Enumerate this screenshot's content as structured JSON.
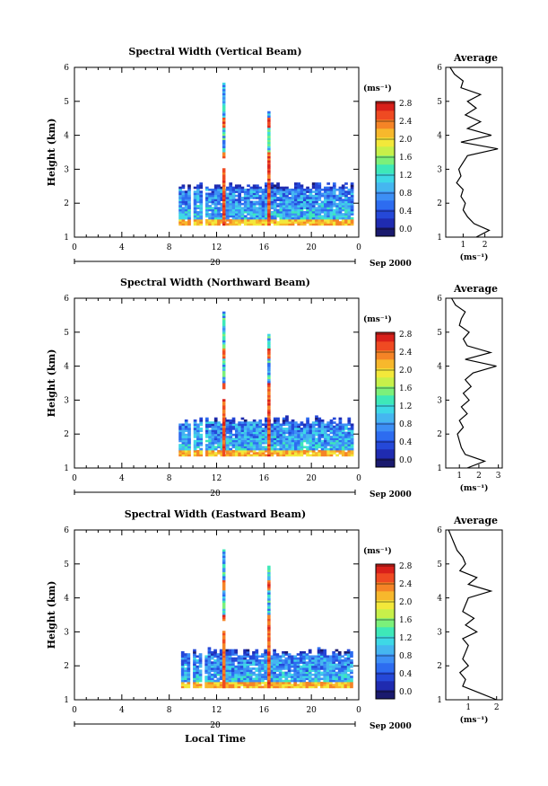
{
  "figure": {
    "xlabel": "Local Time",
    "date_day": "20",
    "date_month": "Sep 2000",
    "colorbar_unit": "(ms⁻¹)",
    "avg_unit": "(ms⁻¹)"
  },
  "chart_data": [
    {
      "type": "heatmap",
      "title": "Spectral Width (Vertical Beam)",
      "xlabel": "Local Time",
      "ylabel": "Height (km)",
      "xlim": [
        0,
        24
      ],
      "ylim": [
        1,
        6
      ],
      "xticks": [
        "0",
        "4",
        "8",
        "12",
        "16",
        "20",
        "0"
      ],
      "yticks": [
        "1",
        "2",
        "3",
        "4",
        "5",
        "6"
      ],
      "colorbar": {
        "ticks": [
          "0.0",
          "0.4",
          "0.8",
          "1.2",
          "1.6",
          "2.0",
          "2.4",
          "2.8"
        ],
        "max": 3.0
      },
      "data_time_start": 8.8,
      "data_time_end": 23.5,
      "cloud_top_km": 2.6,
      "spikes": [
        {
          "time": 12.6,
          "top_km": 5.5
        },
        {
          "time": 16.4,
          "top_km": 4.7
        }
      ],
      "average_profile": {
        "title": "Average",
        "xlim": [
          0.2,
          2.8
        ],
        "xticks": [
          "1",
          "2"
        ],
        "height_km": [
          1.0,
          1.2,
          1.4,
          1.6,
          1.8,
          2.0,
          2.2,
          2.4,
          2.6,
          2.8,
          3.0,
          3.2,
          3.4,
          3.6,
          3.8,
          4.0,
          4.2,
          4.4,
          4.6,
          4.8,
          5.0,
          5.2,
          5.4,
          5.6,
          5.8,
          6.0
        ],
        "width": [
          1.6,
          2.2,
          1.5,
          1.2,
          1.0,
          1.1,
          0.9,
          1.0,
          0.7,
          0.9,
          0.8,
          1.0,
          1.2,
          2.6,
          0.9,
          2.3,
          1.2,
          1.8,
          1.1,
          1.6,
          1.2,
          1.8,
          0.9,
          1.0,
          0.6,
          0.4
        ]
      }
    },
    {
      "type": "heatmap",
      "title": "Spectral Width (Northward Beam)",
      "xlabel": "Local Time",
      "ylabel": "Height (km)",
      "xlim": [
        0,
        24
      ],
      "ylim": [
        1,
        6
      ],
      "xticks": [
        "0",
        "4",
        "8",
        "12",
        "16",
        "20",
        "0"
      ],
      "yticks": [
        "1",
        "2",
        "3",
        "4",
        "5",
        "6"
      ],
      "colorbar": {
        "ticks": [
          "0.0",
          "0.4",
          "0.8",
          "1.2",
          "1.6",
          "2.0",
          "2.4",
          "2.8"
        ],
        "max": 3.0
      },
      "data_time_start": 8.8,
      "data_time_end": 23.5,
      "cloud_top_km": 2.5,
      "spikes": [
        {
          "time": 12.6,
          "top_km": 5.6
        },
        {
          "time": 16.4,
          "top_km": 4.9
        }
      ],
      "average_profile": {
        "title": "Average",
        "xlim": [
          0.3,
          3.2
        ],
        "xticks": [
          "1",
          "2",
          "3"
        ],
        "height_km": [
          1.0,
          1.2,
          1.4,
          1.6,
          1.8,
          2.0,
          2.2,
          2.4,
          2.6,
          2.8,
          3.0,
          3.2,
          3.4,
          3.6,
          3.8,
          4.0,
          4.2,
          4.4,
          4.6,
          4.8,
          5.0,
          5.2,
          5.4,
          5.6,
          5.8,
          6.0
        ],
        "width": [
          1.4,
          2.3,
          1.3,
          1.1,
          1.0,
          0.9,
          1.2,
          1.0,
          1.4,
          1.1,
          1.5,
          1.2,
          1.6,
          1.3,
          1.7,
          2.9,
          1.3,
          2.6,
          1.4,
          1.2,
          1.5,
          1.0,
          1.1,
          1.3,
          0.8,
          0.6
        ]
      }
    },
    {
      "type": "heatmap",
      "title": "Spectral Width (Eastward Beam)",
      "xlabel": "Local Time",
      "ylabel": "Height (km)",
      "xlim": [
        0,
        24
      ],
      "ylim": [
        1,
        6
      ],
      "xticks": [
        "0",
        "4",
        "8",
        "12",
        "16",
        "20",
        "0"
      ],
      "yticks": [
        "1",
        "2",
        "3",
        "4",
        "5",
        "6"
      ],
      "colorbar": {
        "ticks": [
          "0.0",
          "0.4",
          "0.8",
          "1.2",
          "1.6",
          "2.0",
          "2.4",
          "2.8"
        ],
        "max": 3.0
      },
      "data_time_start": 9.0,
      "data_time_end": 23.5,
      "cloud_top_km": 2.5,
      "spikes": [
        {
          "time": 12.6,
          "top_km": 5.4
        },
        {
          "time": 16.4,
          "top_km": 4.9
        }
      ],
      "average_profile": {
        "title": "Average",
        "xlim": [
          0.2,
          2.2
        ],
        "xticks": [
          "1",
          "2"
        ],
        "height_km": [
          1.0,
          1.2,
          1.4,
          1.6,
          1.8,
          2.0,
          2.2,
          2.4,
          2.6,
          2.8,
          3.0,
          3.2,
          3.4,
          3.6,
          3.8,
          4.0,
          4.2,
          4.4,
          4.6,
          4.8,
          5.0,
          5.2,
          5.4,
          5.6,
          5.8,
          6.0
        ],
        "width": [
          2.0,
          1.4,
          0.8,
          0.9,
          0.7,
          1.0,
          0.8,
          0.9,
          1.0,
          0.8,
          1.3,
          0.9,
          1.2,
          0.8,
          0.9,
          1.0,
          1.8,
          1.0,
          1.3,
          0.7,
          0.9,
          0.8,
          0.6,
          0.5,
          0.4,
          0.3
        ]
      }
    }
  ]
}
